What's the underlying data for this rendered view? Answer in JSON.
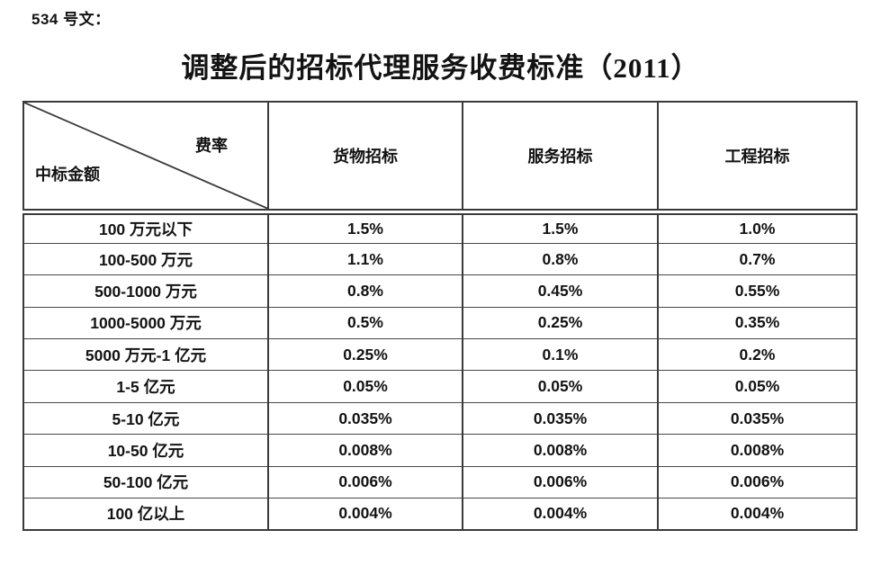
{
  "page": {
    "doc_ref": "534 号文：",
    "title": "调整后的招标代理服务收费标准（2011）"
  },
  "table": {
    "corner": {
      "top_right_label": "费率",
      "bottom_left_label": "中标金额"
    },
    "columns": [
      "货物招标",
      "服务招标",
      "工程招标"
    ],
    "rows": [
      {
        "amount": "100 万元以下",
        "values": [
          "1.5%",
          "1.5%",
          "1.0%"
        ]
      },
      {
        "amount": "100-500 万元",
        "values": [
          "1.1%",
          "0.8%",
          "0.7%"
        ]
      },
      {
        "amount": "500-1000 万元",
        "values": [
          "0.8%",
          "0.45%",
          "0.55%"
        ]
      },
      {
        "amount": "1000-5000 万元",
        "values": [
          "0.5%",
          "0.25%",
          "0.35%"
        ]
      },
      {
        "amount": "5000 万元-1 亿元",
        "values": [
          "0.25%",
          "0.1%",
          "0.2%"
        ]
      },
      {
        "amount": "1-5 亿元",
        "values": [
          "0.05%",
          "0.05%",
          "0.05%"
        ]
      },
      {
        "amount": "5-10 亿元",
        "values": [
          "0.035%",
          "0.035%",
          "0.035%"
        ]
      },
      {
        "amount": "10-50 亿元",
        "values": [
          "0.008%",
          "0.008%",
          "0.008%"
        ]
      },
      {
        "amount": "50-100 亿元",
        "values": [
          "0.006%",
          "0.006%",
          "0.006%"
        ]
      },
      {
        "amount": "100 亿以上",
        "values": [
          "0.004%",
          "0.004%",
          "0.004%"
        ]
      }
    ],
    "colors": {
      "border": "#3a3a3a",
      "text": "#131313"
    }
  }
}
